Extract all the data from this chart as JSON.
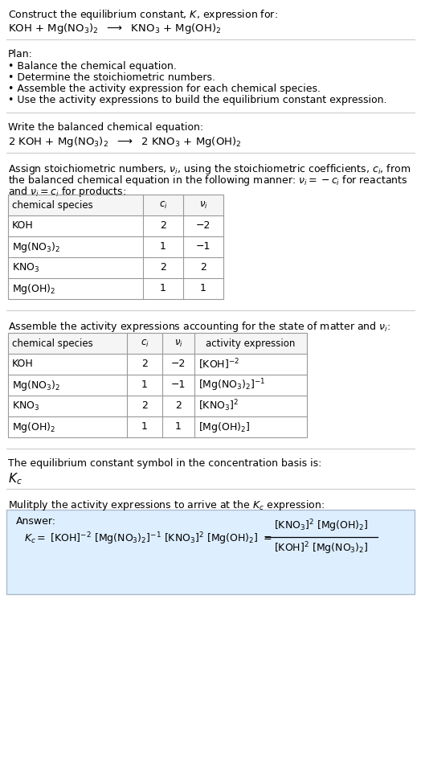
{
  "title_line1": "Construct the equilibrium constant, $K$, expression for:",
  "title_line2": "KOH + Mg(NO$_3$)$_2$  $\\longrightarrow$  KNO$_3$ + Mg(OH)$_2$",
  "plan_header": "Plan:",
  "plan_items": [
    "• Balance the chemical equation.",
    "• Determine the stoichiometric numbers.",
    "• Assemble the activity expression for each chemical species.",
    "• Use the activity expressions to build the equilibrium constant expression."
  ],
  "balanced_header": "Write the balanced chemical equation:",
  "balanced_eq": "2 KOH + Mg(NO$_3$)$_2$  $\\longrightarrow$  2 KNO$_3$ + Mg(OH)$_2$",
  "stoich_line1": "Assign stoichiometric numbers, $\\nu_i$, using the stoichiometric coefficients, $c_i$, from",
  "stoich_line2": "the balanced chemical equation in the following manner: $\\nu_i = -c_i$ for reactants",
  "stoich_line3": "and $\\nu_i = c_i$ for products:",
  "table1_cols": [
    "chemical species",
    "$c_i$",
    "$\\nu_i$"
  ],
  "table1_rows": [
    [
      "KOH",
      "2",
      "−2"
    ],
    [
      "Mg(NO$_3$)$_2$",
      "1",
      "−1"
    ],
    [
      "KNO$_3$",
      "2",
      "2"
    ],
    [
      "Mg(OH)$_2$",
      "1",
      "1"
    ]
  ],
  "activity_header": "Assemble the activity expressions accounting for the state of matter and $\\nu_i$:",
  "table2_cols": [
    "chemical species",
    "$c_i$",
    "$\\nu_i$",
    "activity expression"
  ],
  "table2_rows": [
    [
      "KOH",
      "2",
      "−2",
      "[KOH]$^{-2}$"
    ],
    [
      "Mg(NO$_3$)$_2$",
      "1",
      "−1",
      "[Mg(NO$_3$)$_2$]$^{-1}$"
    ],
    [
      "KNO$_3$",
      "2",
      "2",
      "[KNO$_3$]$^{2}$"
    ],
    [
      "Mg(OH)$_2$",
      "1",
      "1",
      "[Mg(OH)$_2$]"
    ]
  ],
  "kc_header": "The equilibrium constant symbol in the concentration basis is:",
  "kc_symbol": "$K_c$",
  "multiply_header": "Mulitply the activity expressions to arrive at the $K_c$ expression:",
  "answer_label": "Answer:",
  "answer_line1": "$K_c = $ [KOH]$^{-2}$ [Mg(NO$_3$)$_2$]$^{-1}$ [KNO$_3$]$^{2}$ [Mg(OH)$_2$] $=$",
  "bg_color": "#ffffff",
  "answer_box_color": "#ddeeff",
  "answer_box_border": "#aabbcc",
  "table_line_color": "#999999",
  "hline_color": "#cccccc",
  "text_color": "#000000",
  "font_size": 9.0,
  "title_font_size": 9.0,
  "chem_font_size": 9.5
}
